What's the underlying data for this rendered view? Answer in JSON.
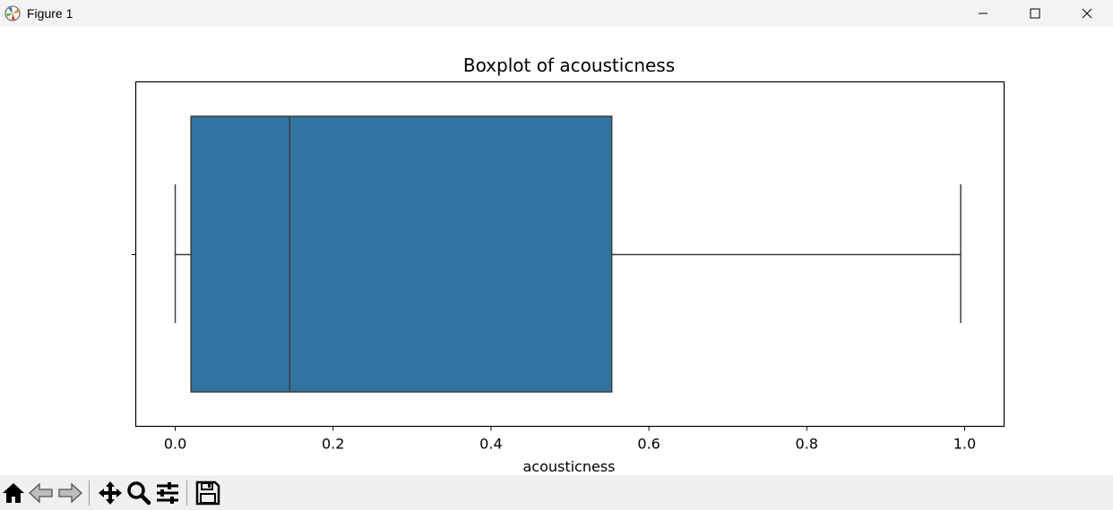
{
  "window": {
    "title": "Figure 1"
  },
  "toolbar": {
    "buttons": [
      "home-icon",
      "back-arrow-icon",
      "forward-arrow-icon",
      "pan-icon",
      "zoom-icon",
      "configure-subplots-icon",
      "save-icon"
    ]
  },
  "chart_data": {
    "type": "boxplot",
    "title": "Boxplot of acousticness",
    "xlabel": "acousticness",
    "ylabel": "",
    "xlim": [
      -0.05,
      1.05
    ],
    "x_ticks": [
      0.0,
      0.2,
      0.4,
      0.6,
      0.8,
      1.0
    ],
    "x_tick_labels": [
      "0.0",
      "0.2",
      "0.4",
      "0.6",
      "0.8",
      "1.0"
    ],
    "orientation": "horizontal",
    "box": {
      "whisker_low": 0.0,
      "q1": 0.02,
      "median": 0.145,
      "q3": 0.553,
      "whisker_high": 0.995
    },
    "box_color": "#3274a1",
    "line_color": "#3d3d3d",
    "grid": false
  }
}
